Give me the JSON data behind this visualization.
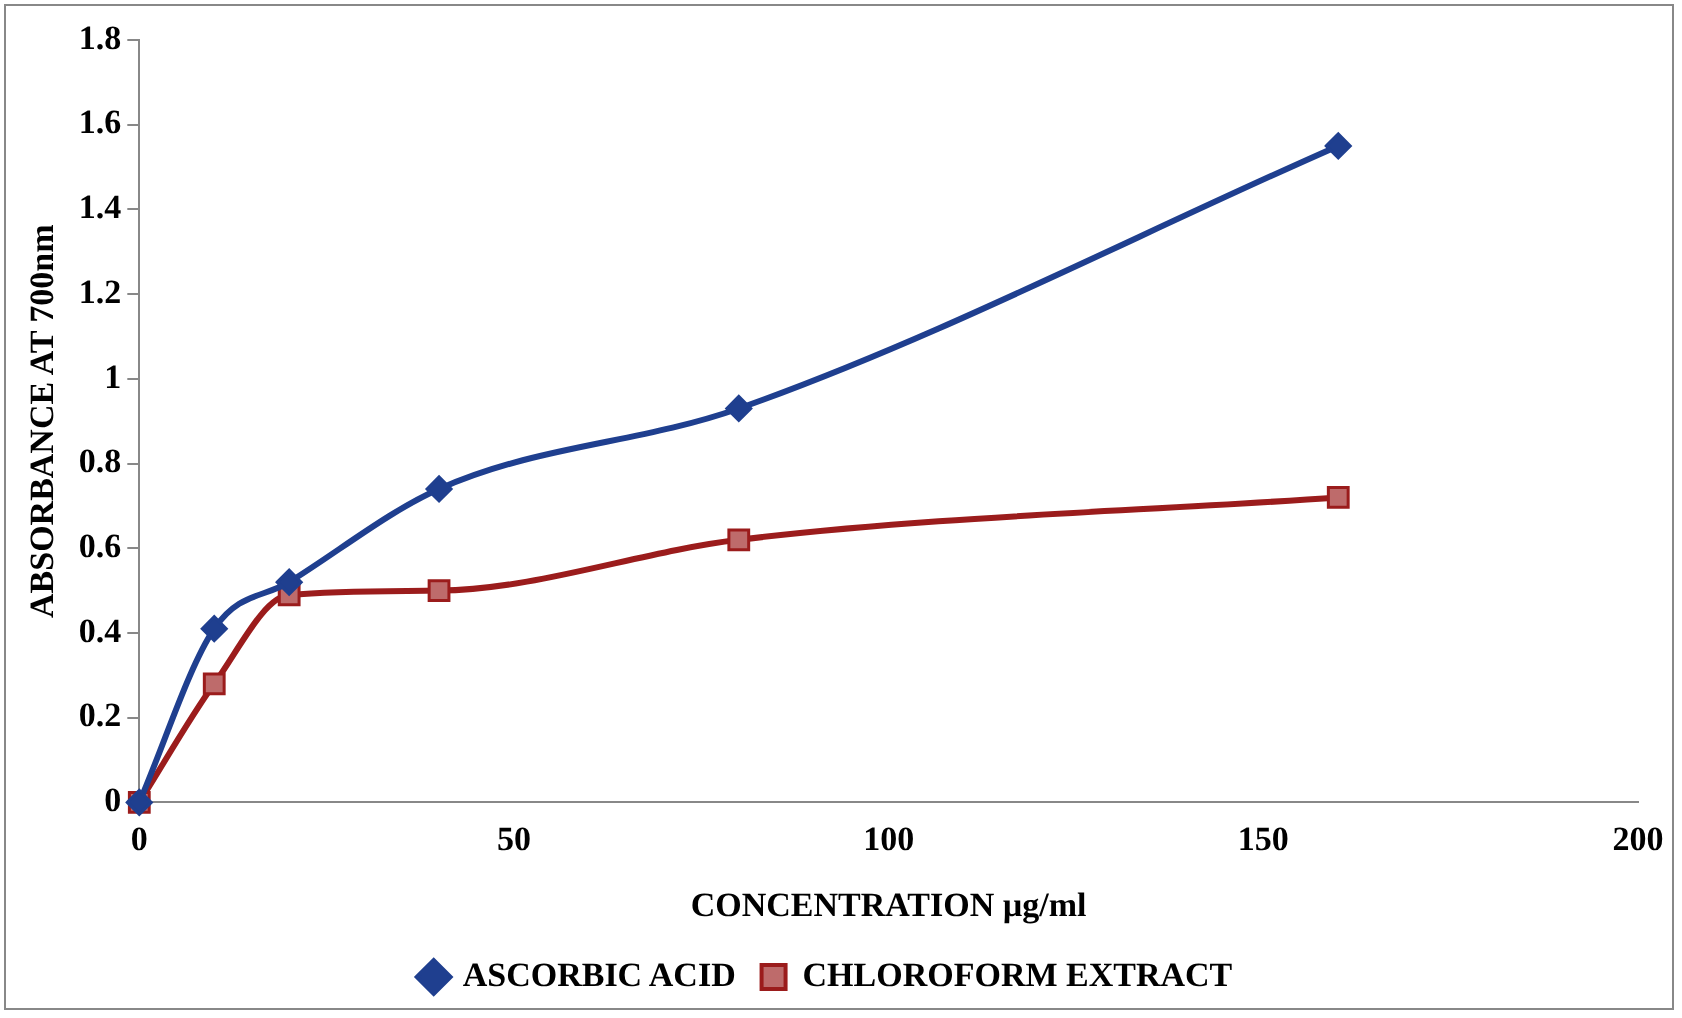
{
  "chart_data": {
    "type": "line",
    "xlabel": "CONCENTRATION µg/ml",
    "ylabel": "ABSORBANCE AT 700nm",
    "x": [
      0,
      10,
      20,
      40,
      80,
      160
    ],
    "series": [
      {
        "name": "ASCORBIC ACID",
        "color": "#1f3f8f",
        "marker": "diamond",
        "values": [
          0,
          0.41,
          0.52,
          0.74,
          0.93,
          1.55
        ]
      },
      {
        "name": "CHLOROFORM EXTRACT",
        "color": "#9b1c1c",
        "marker": "square",
        "values": [
          0,
          0.28,
          0.49,
          0.5,
          0.62,
          0.72
        ]
      }
    ],
    "xlim": [
      0,
      200
    ],
    "xticks": [
      0,
      50,
      100,
      150,
      200
    ],
    "ylim": [
      0,
      1.8
    ],
    "yticks": [
      0,
      0.2,
      0.4,
      0.6,
      0.8,
      1,
      1.2,
      1.4,
      1.6,
      1.8
    ],
    "grid": false,
    "legend": "bottom"
  }
}
